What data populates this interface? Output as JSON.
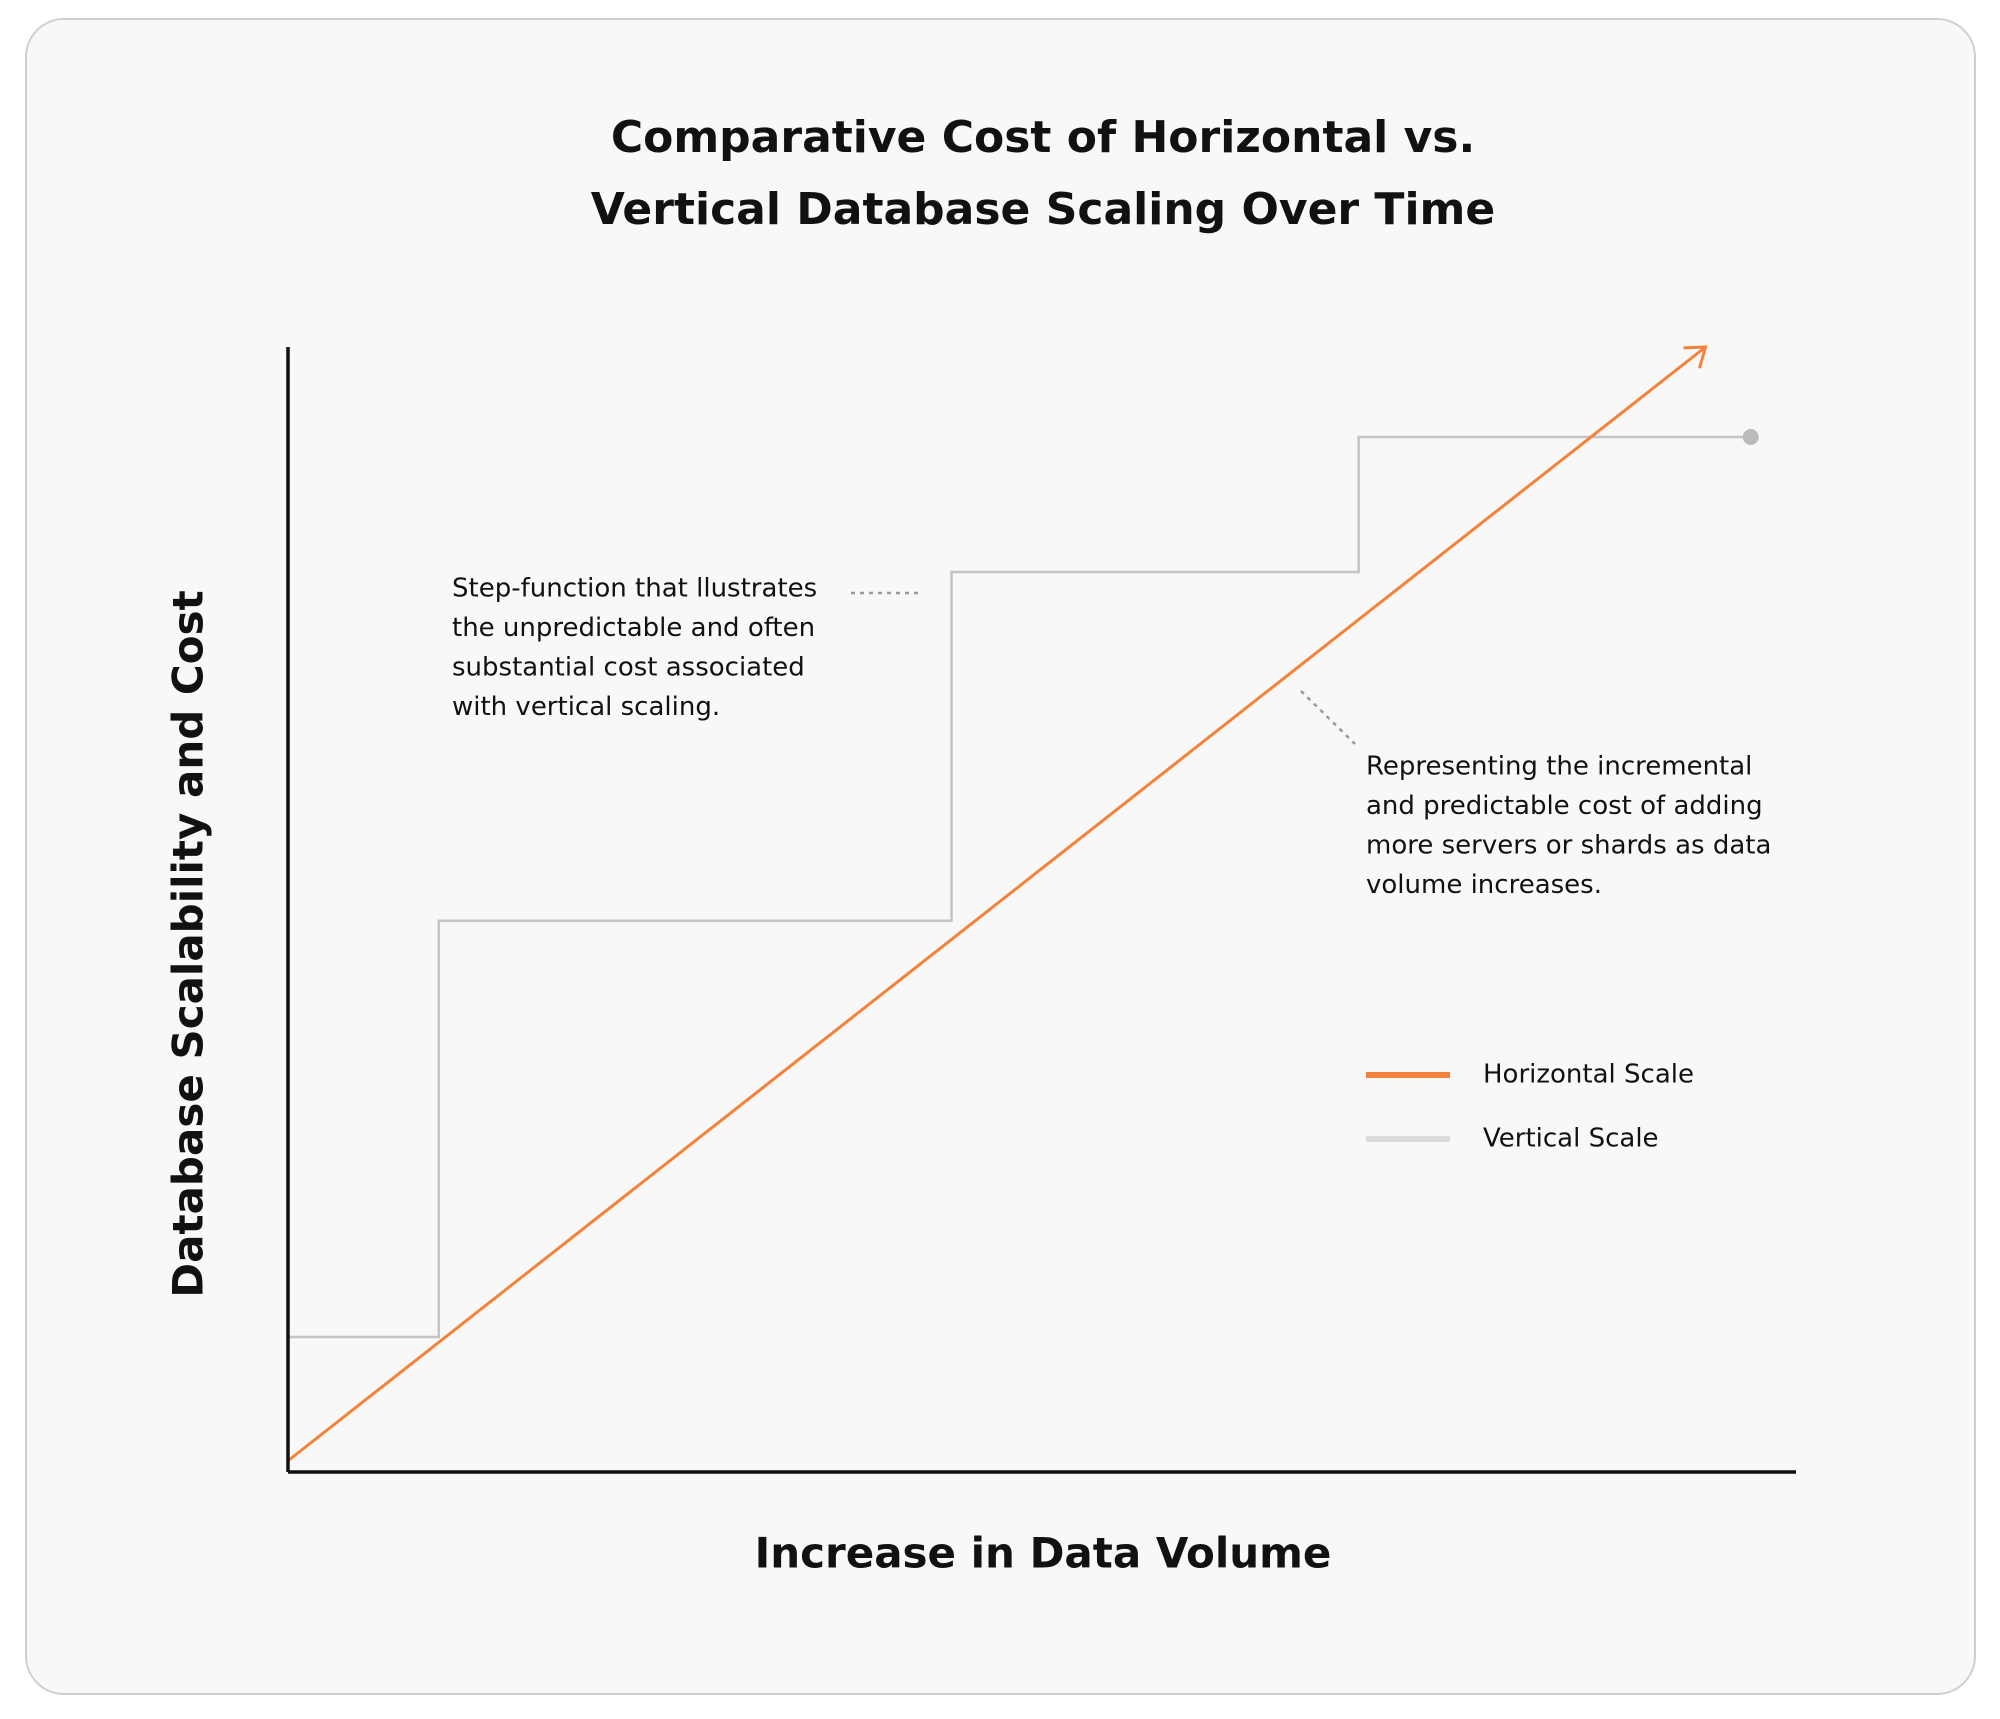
{
  "chart_data": {
    "type": "line",
    "title": [
      "Comparative Cost of Horizontal vs.",
      "Vertical Database Scaling Over Time"
    ],
    "x_label": "Increase in Data Volume",
    "y_label": "Database Scalability and Cost",
    "xlim": [
      0,
      100
    ],
    "ylim": [
      0,
      100
    ],
    "series": [
      {
        "name": "Horizontal Scale",
        "color": "#f5813a",
        "x": [
          0,
          94
        ],
        "values": [
          1,
          100
        ]
      },
      {
        "name": "Vertical Scale",
        "color": "#c4c4c4",
        "x": [
          0,
          10,
          10,
          44,
          44,
          71,
          71,
          97
        ],
        "values": [
          12,
          12,
          49,
          49,
          80,
          80,
          92,
          92
        ]
      }
    ],
    "annotations": [
      {
        "lines": [
          "Step-function that llustrates",
          "the unpredictable and often",
          "substantial cost associated",
          "with vertical scaling."
        ]
      },
      {
        "lines": [
          "Representing the incremental",
          "and predictable cost of adding",
          "more servers or shards as data",
          "volume increases."
        ]
      }
    ]
  }
}
